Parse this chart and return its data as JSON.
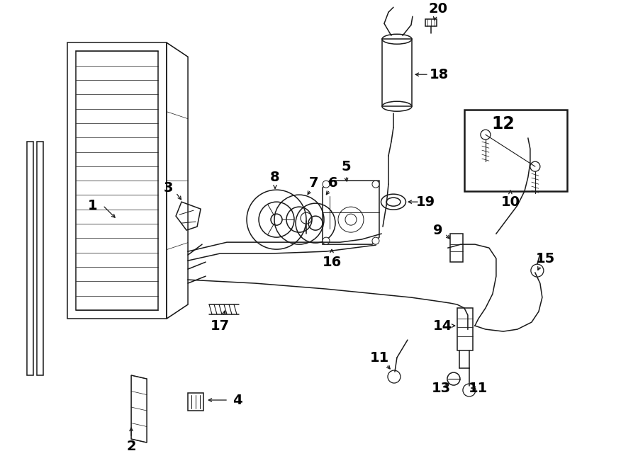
{
  "bg_color": "#ffffff",
  "line_color": "#1a1a1a",
  "figsize": [
    9.0,
    6.61
  ],
  "dpi": 100,
  "lw": 1.1
}
